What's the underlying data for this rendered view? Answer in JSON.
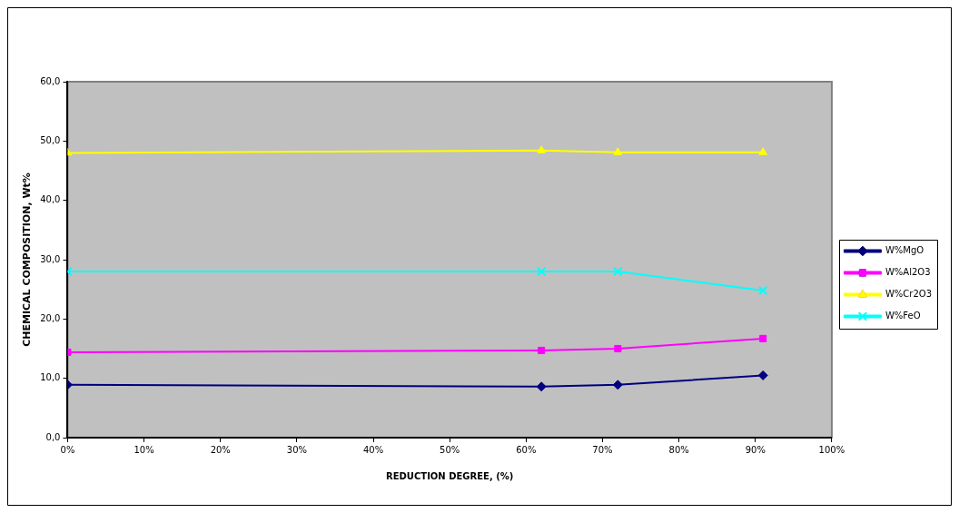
{
  "chart_data": {
    "type": "line",
    "xlabel": "REDUCTION DEGREE, (%)",
    "ylabel": "CHEMICAL COMPOSITION, Wt%",
    "x": [
      0,
      62,
      72,
      91
    ],
    "xlim": [
      0,
      100
    ],
    "xticks": [
      {
        "value": 0,
        "label": "0%"
      },
      {
        "value": 10,
        "label": "10%"
      },
      {
        "value": 20,
        "label": "20%"
      },
      {
        "value": 30,
        "label": "30%"
      },
      {
        "value": 40,
        "label": "40%"
      },
      {
        "value": 50,
        "label": "50%"
      },
      {
        "value": 60,
        "label": "60%"
      },
      {
        "value": 70,
        "label": "70%"
      },
      {
        "value": 80,
        "label": "80%"
      },
      {
        "value": 90,
        "label": "90%"
      },
      {
        "value": 100,
        "label": "100%"
      }
    ],
    "ylim": [
      0,
      60
    ],
    "yticks": [
      {
        "value": 0,
        "label": "0,0"
      },
      {
        "value": 10,
        "label": "10,0"
      },
      {
        "value": 20,
        "label": "20,0"
      },
      {
        "value": 30,
        "label": "30,0"
      },
      {
        "value": 40,
        "label": "40,0"
      },
      {
        "value": 50,
        "label": "50,0"
      },
      {
        "value": 60,
        "label": "60,0"
      }
    ],
    "series": [
      {
        "name": "W%MgO",
        "color": "#000080",
        "marker": "diamond",
        "values": [
          8.9,
          8.6,
          8.9,
          10.5
        ]
      },
      {
        "name": "W%Al2O3",
        "color": "#ff00ff",
        "marker": "square",
        "values": [
          14.4,
          14.7,
          15.0,
          16.7
        ]
      },
      {
        "name": "W%Cr2O3",
        "color": "#ffff00",
        "marker": "triangle",
        "values": [
          48.0,
          48.4,
          48.1,
          48.1
        ]
      },
      {
        "name": "W%FeO",
        "color": "#00ffff",
        "marker": "cross",
        "values": [
          28.0,
          28.0,
          28.0,
          24.8
        ]
      }
    ],
    "grid": false,
    "legend": "right"
  }
}
